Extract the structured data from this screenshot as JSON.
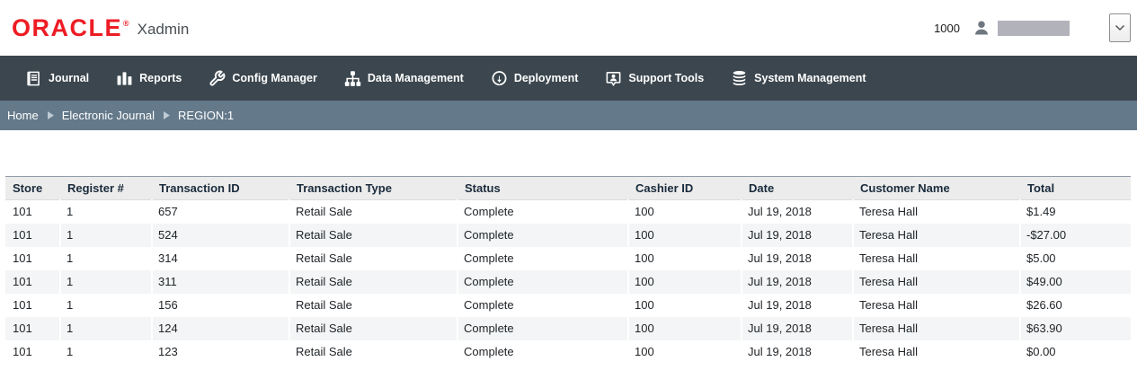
{
  "header": {
    "brand": "ORACLE",
    "registered_mark": "®",
    "app_name": "Xadmin",
    "org_id": "1000"
  },
  "nav": {
    "items": [
      {
        "label": "Journal",
        "icon": "journal-icon"
      },
      {
        "label": "Reports",
        "icon": "reports-icon"
      },
      {
        "label": "Config Manager",
        "icon": "config-manager-icon"
      },
      {
        "label": "Data Management",
        "icon": "data-management-icon"
      },
      {
        "label": "Deployment",
        "icon": "deployment-icon"
      },
      {
        "label": "Support Tools",
        "icon": "support-tools-icon"
      },
      {
        "label": "System Management",
        "icon": "system-management-icon"
      }
    ]
  },
  "breadcrumb": {
    "items": [
      {
        "label": "Home"
      },
      {
        "label": "Electronic Journal"
      },
      {
        "label": "REGION:1"
      }
    ]
  },
  "table": {
    "columns": [
      "Store",
      "Register #",
      "Transaction ID",
      "Transaction Type",
      "Status",
      "Cashier ID",
      "Date",
      "Customer Name",
      "Total"
    ],
    "rows": [
      [
        "101",
        "1",
        "657",
        "Retail Sale",
        "Complete",
        "100",
        "Jul 19, 2018",
        "Teresa Hall",
        "$1.49"
      ],
      [
        "101",
        "1",
        "524",
        "Retail Sale",
        "Complete",
        "100",
        "Jul 19, 2018",
        "Teresa Hall",
        "-$27.00"
      ],
      [
        "101",
        "1",
        "314",
        "Retail Sale",
        "Complete",
        "100",
        "Jul 19, 2018",
        "Teresa Hall",
        "$5.00"
      ],
      [
        "101",
        "1",
        "311",
        "Retail Sale",
        "Complete",
        "100",
        "Jul 19, 2018",
        "Teresa Hall",
        "$49.00"
      ],
      [
        "101",
        "1",
        "156",
        "Retail Sale",
        "Complete",
        "100",
        "Jul 19, 2018",
        "Teresa Hall",
        "$26.60"
      ],
      [
        "101",
        "1",
        "124",
        "Retail Sale",
        "Complete",
        "100",
        "Jul 19, 2018",
        "Teresa Hall",
        "$63.90"
      ],
      [
        "101",
        "1",
        "123",
        "Retail Sale",
        "Complete",
        "100",
        "Jul 19, 2018",
        "Teresa Hall",
        "$0.00"
      ]
    ]
  },
  "colors": {
    "oracle_red": "#ed1c24",
    "nav_bg": "#3b464e",
    "breadcrumb_bg": "#64798a",
    "table_header_bg": "#ececec",
    "row_stripe_bg": "#f3f5f6",
    "redacted_bar": "#b2b2bb"
  }
}
